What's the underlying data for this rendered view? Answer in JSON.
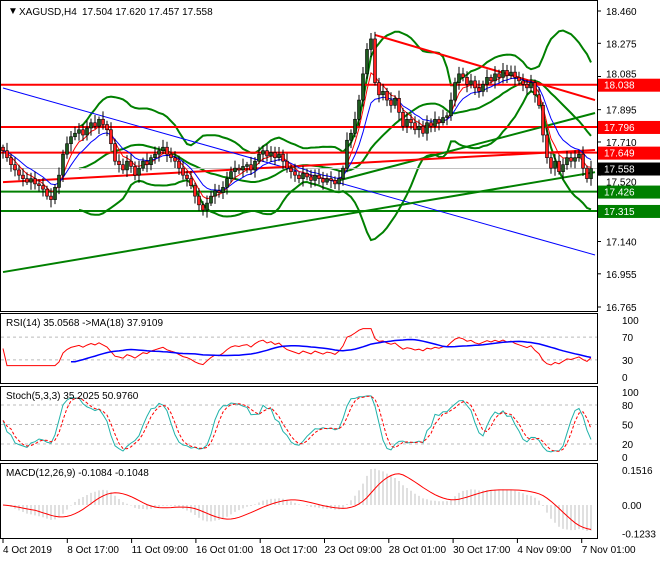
{
  "header": {
    "symbol_label": "XAGUSD,H4",
    "ohlc": "17.504 17.620 17.457 17.558"
  },
  "chart_data": {
    "type": "candlestick",
    "symbol": "XAGUSD",
    "timeframe": "H4",
    "price_ylim": [
      16.765,
      18.46
    ],
    "price_ticks": [
      "18.460",
      "18.275",
      "18.085",
      "17.895",
      "17.710",
      "17.520",
      "17.140",
      "16.955",
      "16.765"
    ],
    "closes": [
      17.66,
      17.62,
      17.58,
      17.55,
      17.52,
      17.5,
      17.48,
      17.5,
      17.47,
      17.46,
      17.44,
      17.4,
      17.38,
      17.45,
      17.52,
      17.64,
      17.7,
      17.74,
      17.76,
      17.78,
      17.75,
      17.79,
      17.82,
      17.8,
      17.84,
      17.81,
      17.78,
      17.7,
      17.6,
      17.58,
      17.55,
      17.6,
      17.57,
      17.52,
      17.56,
      17.6,
      17.58,
      17.62,
      17.64,
      17.66,
      17.68,
      17.64,
      17.62,
      17.6,
      17.56,
      17.52,
      17.5,
      17.46,
      17.4,
      17.35,
      17.32,
      17.36,
      17.4,
      17.43,
      17.42,
      17.45,
      17.5,
      17.54,
      17.56,
      17.55,
      17.57,
      17.58,
      17.55,
      17.6,
      17.64,
      17.66,
      17.63,
      17.65,
      17.62,
      17.64,
      17.6,
      17.56,
      17.54,
      17.52,
      17.5,
      17.53,
      17.51,
      17.49,
      17.52,
      17.5,
      17.48,
      17.5,
      17.49,
      17.47,
      17.5,
      17.56,
      17.72,
      17.76,
      17.84,
      17.95,
      18.1,
      18.24,
      18.3,
      18.05,
      17.98,
      18.0,
      17.95,
      17.92,
      17.96,
      17.88,
      17.8,
      17.84,
      17.82,
      17.78,
      17.8,
      17.76,
      17.82,
      17.8,
      17.84,
      17.82,
      17.85,
      17.86,
      17.95,
      18.05,
      18.1,
      18.08,
      18.04,
      18.06,
      18.02,
      18.0,
      18.04,
      18.08,
      18.06,
      18.1,
      18.08,
      18.12,
      18.09,
      18.11,
      18.08,
      18.06,
      18.04,
      18.02,
      18.05,
      17.98,
      17.92,
      17.75,
      17.62,
      17.56,
      17.6,
      17.54,
      17.58,
      17.62,
      17.6,
      17.62,
      17.64,
      17.56,
      17.5,
      17.558
    ],
    "levels": [
      {
        "price": "18.038",
        "color": "#ff0000"
      },
      {
        "price": "17.796",
        "color": "#ff0000"
      },
      {
        "price": "17.649",
        "color": "#ff0000"
      },
      {
        "price": "17.426",
        "color": "#008000"
      },
      {
        "price": "17.315",
        "color": "#008000"
      }
    ],
    "current_price": {
      "price": "17.558",
      "color": "#000000"
    },
    "trendlines": [
      {
        "from_bar": 0,
        "from_price": 18.019,
        "to_bar": 148,
        "to_price": 17.063,
        "color": "#0000ff",
        "width": 1
      },
      {
        "from_bar": 0,
        "from_price": 16.965,
        "to_bar": 148,
        "to_price": 17.537,
        "color": "#008000",
        "width": 2
      },
      {
        "from_bar": 84,
        "from_price": 17.49,
        "to_bar": 148,
        "to_price": 17.876,
        "color": "#008000",
        "width": 2
      },
      {
        "from_bar": 0,
        "from_price": 17.48,
        "to_bar": 148,
        "to_price": 17.664,
        "color": "#ff0000",
        "width": 2
      },
      {
        "from_bar": 93,
        "from_price": 18.323,
        "to_bar": 148,
        "to_price": 17.95,
        "color": "#ff0000",
        "width": 2
      }
    ],
    "time_labels": [
      "4 Oct 2019",
      "8 Oct 17:00",
      "11 Oct 09:00",
      "16 Oct 01:00",
      "18 Oct 17:00",
      "23 Oct 09:00",
      "28 Oct 01:00",
      "30 Oct 17:00",
      "4 Nov 09:00",
      "7 Nov 01:00"
    ],
    "colors": {
      "bull": "#1e5a1e",
      "bear": "#ff2020",
      "bands": "#008000",
      "ma_fast": "#ff0000",
      "ma_slow": "#0000ff"
    },
    "rsi": {
      "title": "RSI(14) 35.0568  ->MA(18) 37.9109",
      "ticks": [
        "100",
        "70",
        "30",
        "0"
      ],
      "levels": [
        70,
        30
      ],
      "color": "#ff0000",
      "ma_color": "#0000ff"
    },
    "stoch": {
      "title": "Stoch(5,3,3) 35.2025 50.9760",
      "ticks": [
        "100",
        "80",
        "50",
        "20",
        "0"
      ],
      "levels": [
        80,
        50,
        20
      ],
      "color": "#20b2aa",
      "signal_color": "#ff0000"
    },
    "macd": {
      "title": "MACD(12,26,9) -0.1084 -0.1048",
      "ticks": [
        "0.1516",
        "0.00",
        "-0.1233"
      ],
      "hist_color": "#c0c0c0",
      "signal_color": "#ff0000"
    }
  }
}
